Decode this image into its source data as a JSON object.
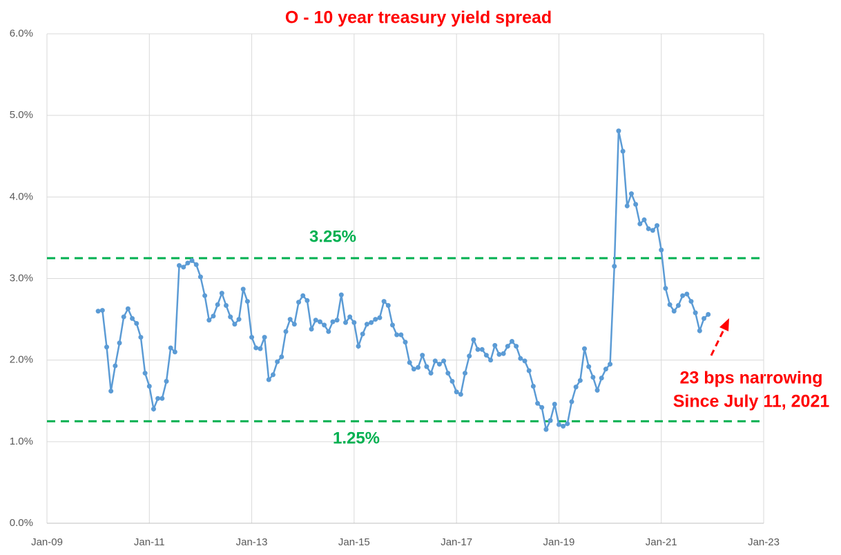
{
  "chart_data": {
    "type": "line",
    "title": "O - 10 year treasury yield spread",
    "x_start": "2010-01",
    "x_step_months": 1,
    "series": [
      {
        "name": "O - 10 year treasury yield spread",
        "color": "#5b9bd5",
        "values": [
          2.6,
          2.61,
          2.16,
          1.62,
          1.93,
          2.21,
          2.53,
          2.63,
          2.51,
          2.45,
          2.28,
          1.84,
          1.68,
          1.4,
          1.53,
          1.53,
          1.74,
          2.15,
          2.1,
          3.16,
          3.14,
          3.19,
          3.22,
          3.17,
          3.02,
          2.79,
          2.49,
          2.54,
          2.68,
          2.82,
          2.67,
          2.53,
          2.44,
          2.5,
          2.87,
          2.72,
          2.28,
          2.15,
          2.14,
          2.28,
          1.76,
          1.82,
          1.98,
          2.04,
          2.35,
          2.5,
          2.44,
          2.71,
          2.79,
          2.73,
          2.38,
          2.49,
          2.47,
          2.43,
          2.35,
          2.47,
          2.49,
          2.8,
          2.46,
          2.53,
          2.46,
          2.17,
          2.32,
          2.44,
          2.46,
          2.5,
          2.52,
          2.72,
          2.67,
          2.43,
          2.31,
          2.31,
          2.22,
          1.97,
          1.89,
          1.91,
          2.06,
          1.92,
          1.84,
          1.99,
          1.95,
          1.99,
          1.84,
          1.74,
          1.61,
          1.58,
          1.84,
          2.05,
          2.25,
          2.13,
          2.13,
          2.06,
          2.0,
          2.18,
          2.07,
          2.08,
          2.17,
          2.23,
          2.17,
          2.02,
          1.99,
          1.87,
          1.68,
          1.47,
          1.42,
          1.15,
          1.26,
          1.46,
          1.21,
          1.19,
          1.22,
          1.49,
          1.67,
          1.75,
          2.14,
          1.92,
          1.79,
          1.63,
          1.78,
          1.89,
          1.95,
          3.15,
          4.81,
          4.56,
          3.89,
          4.04,
          3.91,
          3.67,
          3.72,
          3.61,
          3.59,
          3.65,
          3.35,
          2.88,
          2.68,
          2.6,
          2.67,
          2.79,
          2.81,
          2.72,
          2.58,
          2.36,
          2.51,
          2.56
        ]
      }
    ],
    "xlim": [
      "2009-01",
      "2023-01"
    ],
    "xticks": [
      {
        "value": "2009-01",
        "label": "Jan-09"
      },
      {
        "value": "2011-01",
        "label": "Jan-11"
      },
      {
        "value": "2013-01",
        "label": "Jan-13"
      },
      {
        "value": "2015-01",
        "label": "Jan-15"
      },
      {
        "value": "2017-01",
        "label": "Jan-17"
      },
      {
        "value": "2019-01",
        "label": "Jan-19"
      },
      {
        "value": "2021-01",
        "label": "Jan-21"
      },
      {
        "value": "2023-01",
        "label": "Jan-23"
      }
    ],
    "ylim": [
      0,
      6
    ],
    "yticks": [
      {
        "value": 0,
        "label": "0.0%"
      },
      {
        "value": 1,
        "label": "1.0%"
      },
      {
        "value": 2,
        "label": "2.0%"
      },
      {
        "value": 3,
        "label": "3.0%"
      },
      {
        "value": 4,
        "label": "4.0%"
      },
      {
        "value": 5,
        "label": "5.0%"
      },
      {
        "value": 6,
        "label": "6.0%"
      }
    ],
    "grid": true,
    "reference_lines": [
      {
        "value": 3.25,
        "label": "3.25%",
        "color": "#00b050"
      },
      {
        "value": 1.25,
        "label": "1.25%",
        "color": "#00b050"
      }
    ],
    "annotation": [
      "23 bps narrowing",
      "Since July 11, 2021"
    ]
  }
}
